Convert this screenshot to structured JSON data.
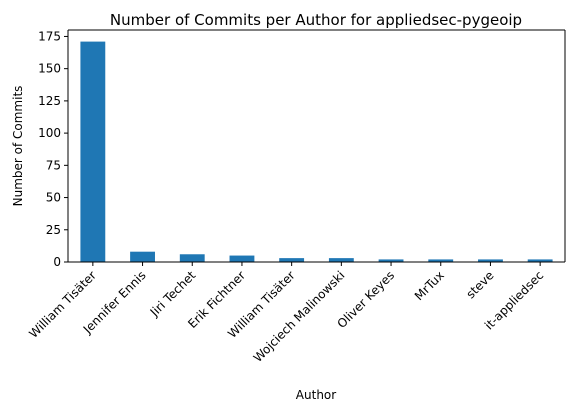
{
  "chart_data": {
    "type": "bar",
    "title": "Number of Commits per Author for appliedsec-pygeoip",
    "xlabel": "Author",
    "ylabel": "Number of Commits",
    "categories": [
      "William Tisäter",
      "Jennifer Ennis",
      "Jiri Techet",
      "Erik Fichtner",
      "William Tisäter",
      "Wojciech Malinowski",
      "Oliver Keyes",
      "MrTux",
      "steve",
      "it-appliedsec"
    ],
    "values": [
      171,
      8,
      6,
      5,
      3,
      3,
      2,
      2,
      2,
      2
    ],
    "ylim": [
      0,
      180
    ],
    "yticks": [
      0,
      25,
      50,
      75,
      100,
      125,
      150,
      175
    ],
    "bar_color": "#1f77b4",
    "grid": false,
    "legend": "none"
  }
}
